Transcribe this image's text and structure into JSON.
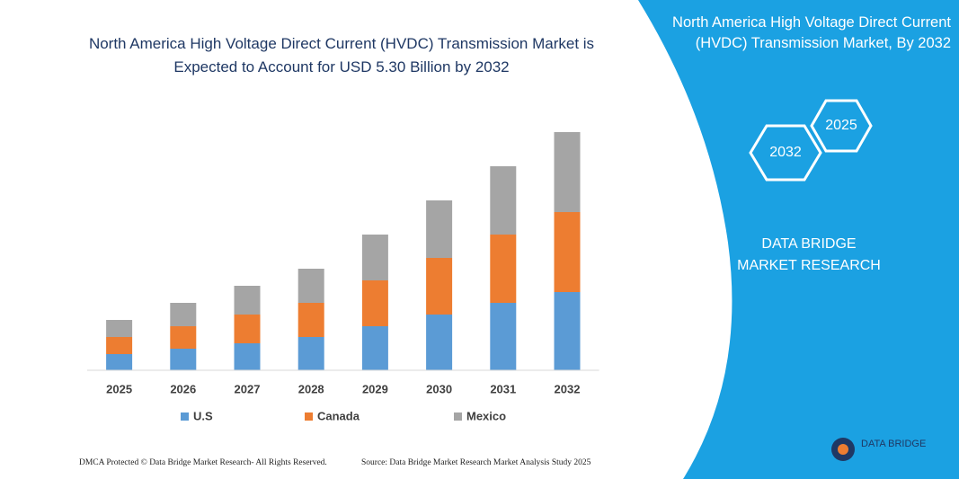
{
  "chart_data": {
    "type": "stacked_bar",
    "title": "North America High Voltage Direct Current (HVDC) Transmission Market is Expected to Account for USD 5.30 Billion by 2032",
    "categories": [
      "2025",
      "2026",
      "2027",
      "2028",
      "2029",
      "2030",
      "2031",
      "2032"
    ],
    "series": [
      {
        "name": "U.S",
        "color": "#5b9bd5",
        "values": [
          0.36,
          0.48,
          0.6,
          0.74,
          0.98,
          1.24,
          1.5,
          1.74
        ]
      },
      {
        "name": "Canada",
        "color": "#ed7d31",
        "values": [
          0.38,
          0.5,
          0.64,
          0.76,
          1.02,
          1.26,
          1.52,
          1.78
        ]
      },
      {
        "name": "Mexico",
        "color": "#a5a5a5",
        "values": [
          0.38,
          0.52,
          0.64,
          0.76,
          1.02,
          1.28,
          1.52,
          1.78
        ]
      }
    ]
  },
  "panel": {
    "title": "North America High Voltage Direct Current (HVDC) Transmission Market, By 2032",
    "hex_start": "2025",
    "hex_end": "2032",
    "brand": "DATA BRIDGE MARKET RESEARCH"
  },
  "footer": {
    "left": "DMCA Protected © Data Bridge Market Research- All Rights Reserved.",
    "right": "Source: Data Bridge Market Research Market Analysis Study 2025",
    "logo": "DATA BRIDGE"
  }
}
